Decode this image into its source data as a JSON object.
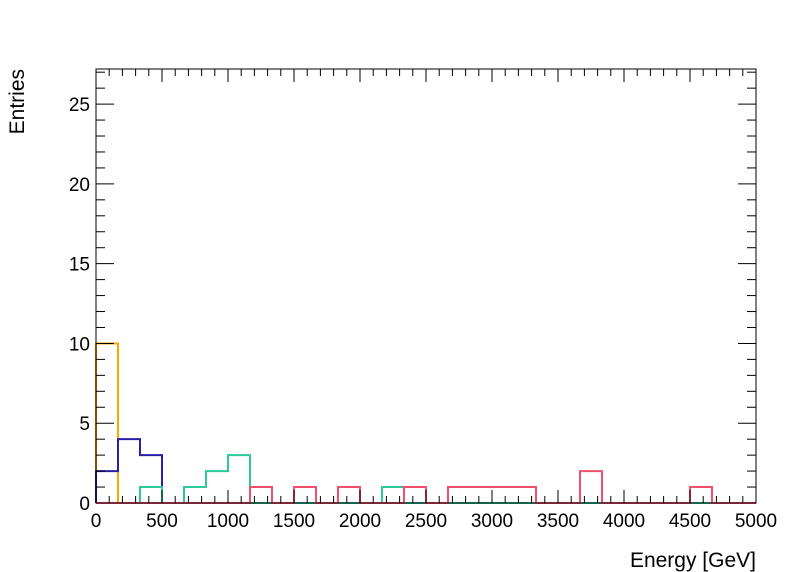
{
  "chart_data": {
    "type": "histogram-step",
    "xlabel": "Energy [GeV]",
    "ylabel": "Entries",
    "xlim": [
      0,
      5000
    ],
    "ylim": [
      0,
      27.2
    ],
    "bin_width": 166.67,
    "x_ticks": [
      0,
      500,
      1000,
      1500,
      2000,
      2500,
      3000,
      3500,
      4000,
      4500,
      5000
    ],
    "y_ticks": [
      0,
      5,
      10,
      15,
      20,
      25
    ],
    "grid": false,
    "series": [
      {
        "color": "#ffa500",
        "values": [
          10,
          0,
          0,
          0,
          0,
          0,
          0,
          0,
          0,
          0,
          0,
          0,
          0,
          0,
          0,
          0,
          0,
          0,
          0,
          0,
          0,
          0,
          0,
          0,
          0,
          0,
          0,
          0,
          0,
          0
        ]
      },
      {
        "color": "#2a1fa8",
        "values": [
          2,
          4,
          3,
          0,
          0,
          0,
          0,
          0,
          0,
          0,
          0,
          0,
          0,
          0,
          0,
          0,
          0,
          0,
          0,
          0,
          0,
          0,
          0,
          0,
          0,
          0,
          0,
          0,
          0,
          0
        ]
      },
      {
        "color": "#2ec99a",
        "values": [
          0,
          0,
          1,
          0,
          1,
          2,
          3,
          0,
          0,
          0,
          0,
          0,
          0,
          1,
          0,
          0,
          0,
          0,
          0,
          0,
          0,
          0,
          0,
          0,
          0,
          0,
          0,
          0,
          0,
          0
        ]
      },
      {
        "color": "#f0506e",
        "values": [
          0,
          0,
          0,
          0,
          0,
          0,
          0,
          1,
          0,
          1,
          0,
          1,
          0,
          0,
          1,
          0,
          1,
          1,
          1,
          1,
          0,
          0,
          2,
          0,
          0,
          0,
          0,
          1,
          0,
          0
        ]
      }
    ]
  }
}
